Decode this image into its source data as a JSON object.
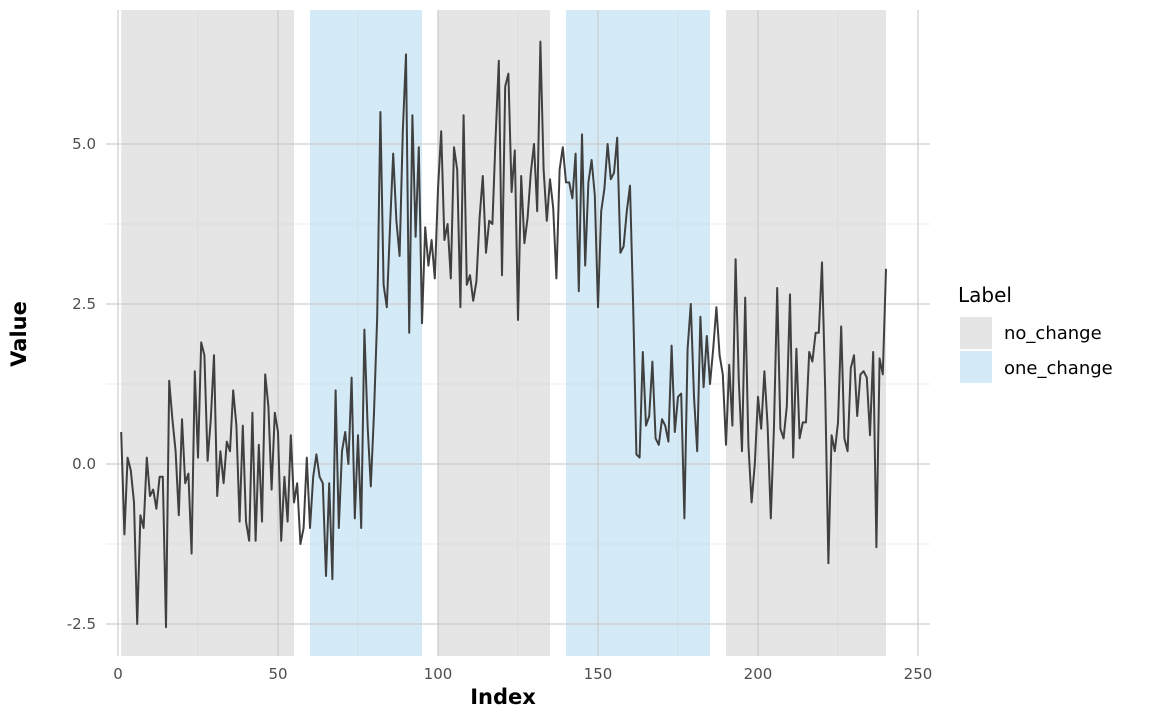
{
  "chart_data": {
    "type": "line",
    "xlabel": "Index",
    "ylabel": "Value",
    "xlim": [
      -1,
      251
    ],
    "ylim": [
      -3.0,
      7.1
    ],
    "x_ticks": [
      0,
      50,
      100,
      150,
      200,
      250
    ],
    "y_ticks": [
      -2.5,
      0.0,
      2.5,
      5.0
    ],
    "y_tick_labels": [
      "-2.5",
      "0.0",
      "2.5",
      "5.0"
    ],
    "grid": true,
    "legend": {
      "title": "Label",
      "position": "right",
      "entries": [
        {
          "label": "no_change",
          "color": "#e5e5e5"
        },
        {
          "label": "one_change",
          "color": "#d4ebf7"
        }
      ]
    },
    "regions": [
      {
        "start": 1,
        "end": 55,
        "label": "no_change"
      },
      {
        "start": 60,
        "end": 95,
        "label": "one_change"
      },
      {
        "start": 100,
        "end": 135,
        "label": "no_change"
      },
      {
        "start": 140,
        "end": 185,
        "label": "one_change"
      },
      {
        "start": 190,
        "end": 240,
        "label": "no_change"
      }
    ],
    "line_color": "#404040",
    "series": [
      {
        "x": [
          1,
          2,
          3,
          4,
          5,
          6,
          7,
          8,
          9,
          10,
          11,
          12,
          13,
          14,
          15,
          16,
          17,
          18,
          19,
          20,
          21,
          22,
          23,
          24,
          25,
          26,
          27,
          28,
          29,
          30,
          31,
          32,
          33,
          34,
          35,
          36,
          37,
          38,
          39,
          40,
          41,
          42,
          43,
          44,
          45,
          46,
          47,
          48,
          49,
          50,
          51,
          52,
          53,
          54,
          55,
          56,
          57,
          58,
          59,
          60,
          61,
          62,
          63,
          64,
          65,
          66,
          67,
          68,
          69,
          70,
          71,
          72,
          73,
          74,
          75,
          76,
          77,
          78,
          79,
          80,
          81,
          82,
          83,
          84,
          85,
          86,
          87,
          88,
          89,
          90,
          91,
          92,
          93,
          94,
          95,
          96,
          97,
          98,
          99,
          100,
          101,
          102,
          103,
          104,
          105,
          106,
          107,
          108,
          109,
          110,
          111,
          112,
          113,
          114,
          115,
          116,
          117,
          118,
          119,
          120,
          121,
          122,
          123,
          124,
          125,
          126,
          127,
          128,
          129,
          130,
          131,
          132,
          133,
          134,
          135,
          136,
          137,
          138,
          139,
          140,
          141,
          142,
          143,
          144,
          145,
          146,
          147,
          148,
          149,
          150,
          151,
          152,
          153,
          154,
          155,
          156,
          157,
          158,
          159,
          160,
          161,
          162,
          163,
          164,
          165,
          166,
          167,
          168,
          169,
          170,
          171,
          172,
          173,
          174,
          175,
          176,
          177,
          178,
          179,
          180,
          181,
          182,
          183,
          184,
          185,
          186,
          187,
          188,
          189,
          190,
          191,
          192,
          193,
          194,
          195,
          196,
          197,
          198,
          199,
          200,
          201,
          202,
          203,
          204,
          205,
          206,
          207,
          208,
          209,
          210,
          211,
          212,
          213,
          214,
          215,
          216,
          217,
          218,
          219,
          220,
          221,
          222,
          223,
          224,
          225,
          226,
          227,
          228,
          229,
          230,
          231,
          232,
          233,
          234,
          235,
          236,
          237,
          238,
          239,
          240
        ],
        "y": [
          0.5,
          -1.1,
          0.1,
          -0.1,
          -0.6,
          -2.5,
          -0.8,
          -1.0,
          0.1,
          -0.5,
          -0.4,
          -0.7,
          -0.2,
          -0.2,
          -2.55,
          1.3,
          0.7,
          0.2,
          -0.8,
          0.7,
          -0.3,
          -0.15,
          -1.4,
          1.45,
          0.1,
          1.9,
          1.7,
          0.05,
          0.7,
          1.7,
          -0.5,
          0.2,
          -0.3,
          0.35,
          0.2,
          1.15,
          0.6,
          -0.9,
          0.6,
          -0.9,
          -1.2,
          0.8,
          -1.2,
          0.3,
          -0.9,
          1.4,
          0.9,
          -0.4,
          0.8,
          0.5,
          -1.2,
          -0.2,
          -0.9,
          0.45,
          -0.6,
          -0.3,
          -1.25,
          -1.0,
          0.1,
          -1.0,
          -0.2,
          0.15,
          -0.2,
          -0.3,
          -1.75,
          -0.3,
          -1.8,
          1.15,
          -1.0,
          0.2,
          0.5,
          0.0,
          1.35,
          -0.85,
          0.45,
          -1.0,
          2.1,
          0.6,
          -0.35,
          0.8,
          2.3,
          5.5,
          2.8,
          2.45,
          3.7,
          4.85,
          3.8,
          3.25,
          5.2,
          6.4,
          2.05,
          5.45,
          3.55,
          4.95,
          2.2,
          3.7,
          3.1,
          3.5,
          2.9,
          4.3,
          5.2,
          3.5,
          3.75,
          2.9,
          4.95,
          4.6,
          2.45,
          5.45,
          2.8,
          2.95,
          2.55,
          2.85,
          3.85,
          4.5,
          3.3,
          3.8,
          3.75,
          5.1,
          6.3,
          2.95,
          5.9,
          6.1,
          4.25,
          4.9,
          2.25,
          4.5,
          3.45,
          3.85,
          4.55,
          5.0,
          3.95,
          6.6,
          4.6,
          3.8,
          4.45,
          4.0,
          2.9,
          4.6,
          4.95,
          4.4,
          4.4,
          4.15,
          4.85,
          2.7,
          5.15,
          3.1,
          4.4,
          4.75,
          4.2,
          2.45,
          3.95,
          4.3,
          5.0,
          4.45,
          4.55,
          5.1,
          3.3,
          3.4,
          3.95,
          4.35,
          2.45,
          0.15,
          0.1,
          1.75,
          0.6,
          0.75,
          1.6,
          0.4,
          0.3,
          0.7,
          0.6,
          0.35,
          1.85,
          0.5,
          1.05,
          1.1,
          -0.85,
          1.8,
          2.5,
          1.05,
          0.2,
          2.3,
          1.2,
          2.0,
          1.25,
          1.8,
          2.45,
          1.7,
          1.4,
          0.3,
          1.55,
          0.6,
          3.2,
          1.3,
          0.2,
          2.6,
          0.3,
          -0.6,
          0.0,
          1.05,
          0.55,
          1.45,
          0.6,
          -0.85,
          0.6,
          2.75,
          0.55,
          0.4,
          0.9,
          2.65,
          0.1,
          1.8,
          0.4,
          0.65,
          0.65,
          1.75,
          1.6,
          2.05,
          2.05,
          3.15,
          1.15,
          -1.55,
          0.45,
          0.2,
          0.65,
          2.15,
          0.4,
          0.2,
          1.5,
          1.7,
          0.75,
          1.4,
          1.45,
          1.35,
          0.45,
          1.75,
          -1.3,
          1.65,
          1.4,
          3.05
        ]
      }
    ]
  }
}
